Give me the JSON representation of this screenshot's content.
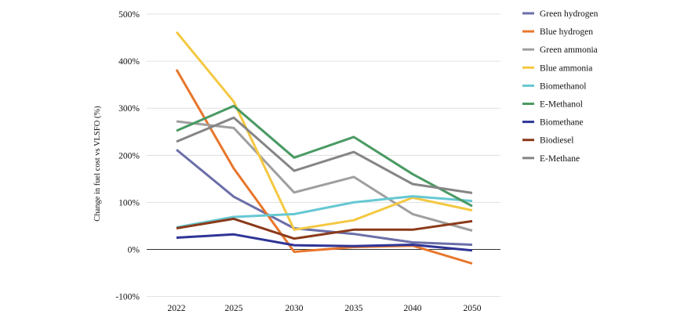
{
  "chart_data": {
    "type": "line",
    "title": "",
    "xlabel": "",
    "ylabel": "Change in fuel cost vs VLSFO (%)",
    "categories": [
      "2022",
      "2025",
      "2030",
      "2035",
      "2040",
      "2050"
    ],
    "ylim": [
      -100,
      500
    ],
    "yticks": [
      -100,
      0,
      100,
      200,
      300,
      400,
      500
    ],
    "ytick_labels": [
      "-100%",
      "0%",
      "100%",
      "200%",
      "300%",
      "400%",
      "500%"
    ],
    "grid": "horizontal",
    "legend_position": "right",
    "series": [
      {
        "name": "Green hydrogen",
        "color": "#6b6fa8",
        "values": [
          212,
          112,
          45,
          33,
          15,
          10
        ]
      },
      {
        "name": "Blue hydrogen",
        "color": "#e8762b",
        "values": [
          382,
          172,
          -5,
          5,
          8,
          -30
        ]
      },
      {
        "name": "Green ammonia",
        "color": "#9f9f9f",
        "values": [
          272,
          258,
          121,
          154,
          75,
          40
        ]
      },
      {
        "name": "Blue ammonia",
        "color": "#f4c842",
        "values": [
          462,
          314,
          42,
          62,
          110,
          83
        ]
      },
      {
        "name": "Biomethanol",
        "color": "#66c8d2",
        "values": [
          47,
          69,
          75,
          100,
          113,
          103
        ]
      },
      {
        "name": "E-Methanol",
        "color": "#4a9a63",
        "values": [
          252,
          305,
          195,
          239,
          160,
          92
        ]
      },
      {
        "name": "Biomethane",
        "color": "#2e3596",
        "values": [
          25,
          32,
          9,
          7,
          10,
          -2
        ]
      },
      {
        "name": "Biodiesel",
        "color": "#8b3a1a",
        "values": [
          45,
          65,
          23,
          42,
          42,
          60
        ]
      },
      {
        "name": "E-Methane",
        "color": "#858585",
        "values": [
          229,
          280,
          167,
          207,
          139,
          120
        ]
      }
    ]
  }
}
